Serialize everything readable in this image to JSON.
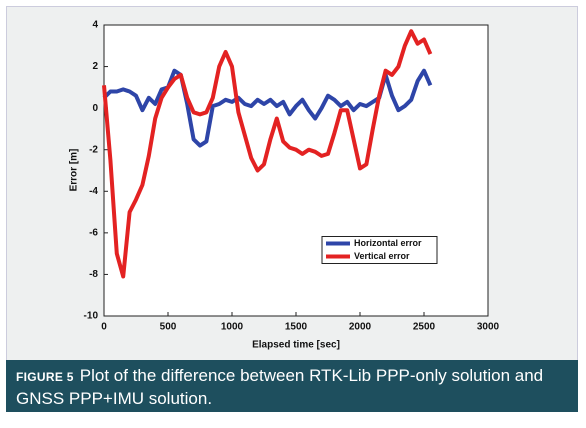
{
  "chart_data": {
    "type": "line",
    "xlabel": "Elapsed time [sec]",
    "ylabel": "Error [m]",
    "x": [
      0,
      50,
      100,
      150,
      200,
      250,
      300,
      350,
      400,
      450,
      500,
      550,
      600,
      650,
      700,
      750,
      800,
      850,
      900,
      950,
      1000,
      1050,
      1100,
      1150,
      1200,
      1250,
      1300,
      1350,
      1400,
      1450,
      1500,
      1550,
      1600,
      1650,
      1700,
      1750,
      1800,
      1850,
      1900,
      1950,
      2000,
      2050,
      2100,
      2150,
      2200,
      2250,
      2300,
      2350,
      2400,
      2450,
      2500,
      2550
    ],
    "series": [
      {
        "name": "Horizontal error",
        "color": "#2e45a8",
        "values": [
          0.5,
          0.8,
          0.8,
          0.9,
          0.8,
          0.6,
          -0.1,
          0.5,
          0.2,
          0.9,
          1.0,
          1.8,
          1.6,
          0.2,
          -1.5,
          -1.8,
          -1.6,
          0.1,
          0.2,
          0.4,
          0.3,
          0.5,
          0.2,
          0.1,
          0.4,
          0.2,
          0.4,
          0.1,
          0.3,
          -0.3,
          0.1,
          0.4,
          -0.1,
          -0.5,
          0.0,
          0.6,
          0.4,
          0.1,
          0.3,
          -0.1,
          0.2,
          0.1,
          0.3,
          0.5,
          1.6,
          0.6,
          -0.1,
          0.1,
          0.4,
          1.3,
          1.8,
          1.1
        ]
      },
      {
        "name": "Vertical error",
        "color": "#e32222",
        "values": [
          1.1,
          -2.5,
          -7,
          -8.1,
          -5,
          -4.4,
          -3.7,
          -2.3,
          -0.5,
          0.5,
          1.0,
          1.4,
          1.6,
          0.5,
          -0.2,
          -0.3,
          -0.2,
          0.5,
          2.0,
          2.7,
          2.0,
          -0.2,
          -1.3,
          -2.4,
          -3.0,
          -2.7,
          -1.5,
          -0.5,
          -1.6,
          -1.9,
          -2.0,
          -2.2,
          -2.0,
          -2.1,
          -2.3,
          -2.2,
          -1.2,
          -0.1,
          -0.1,
          -1.5,
          -2.9,
          -2.7,
          -1.0,
          0.6,
          1.8,
          1.6,
          2.0,
          3.0,
          3.7,
          3.1,
          3.3,
          2.6
        ]
      }
    ],
    "xlim": [
      0,
      3000
    ],
    "xticks": [
      0,
      500,
      1000,
      1500,
      2000,
      2500,
      3000
    ],
    "ylim": [
      -10,
      4
    ],
    "yticks": [
      -10,
      -8,
      -6,
      -4,
      -2,
      0,
      2,
      4
    ],
    "grid": false,
    "legend": "east"
  },
  "caption": {
    "label": "FIGURE 5",
    "text": "Plot of the difference between RTK-Lib PPP-only solution and GNSS PPP+IMU solution."
  }
}
